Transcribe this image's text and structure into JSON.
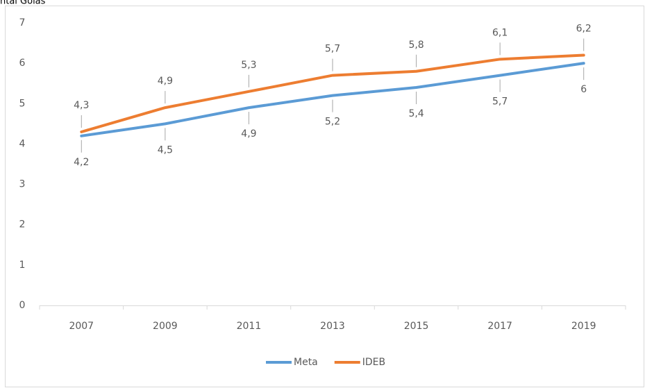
{
  "chart_data": {
    "type": "line",
    "title": "ntal Goiás",
    "categories": [
      "2007",
      "2009",
      "2011",
      "2013",
      "2015",
      "2017",
      "2019"
    ],
    "series": [
      {
        "name": "Meta",
        "color": "#5b9bd5",
        "values": [
          4.2,
          4.5,
          4.9,
          5.2,
          5.4,
          5.7,
          6
        ],
        "value_labels": [
          "4,2",
          "4,5",
          "4,9",
          "5,2",
          "5,4",
          "5,7",
          "6"
        ]
      },
      {
        "name": "IDEB",
        "color": "#ed7d31",
        "values": [
          4.3,
          4.9,
          5.3,
          5.7,
          5.8,
          6.1,
          6.2
        ],
        "value_labels": [
          "4,3",
          "4,9",
          "5,3",
          "5,7",
          "5,8",
          "6,1",
          "6,2"
        ]
      }
    ],
    "ylim": [
      0,
      7
    ],
    "yticks": [
      0,
      1,
      2,
      3,
      4,
      5,
      6,
      7
    ],
    "grid": false,
    "legend": "bottom"
  }
}
